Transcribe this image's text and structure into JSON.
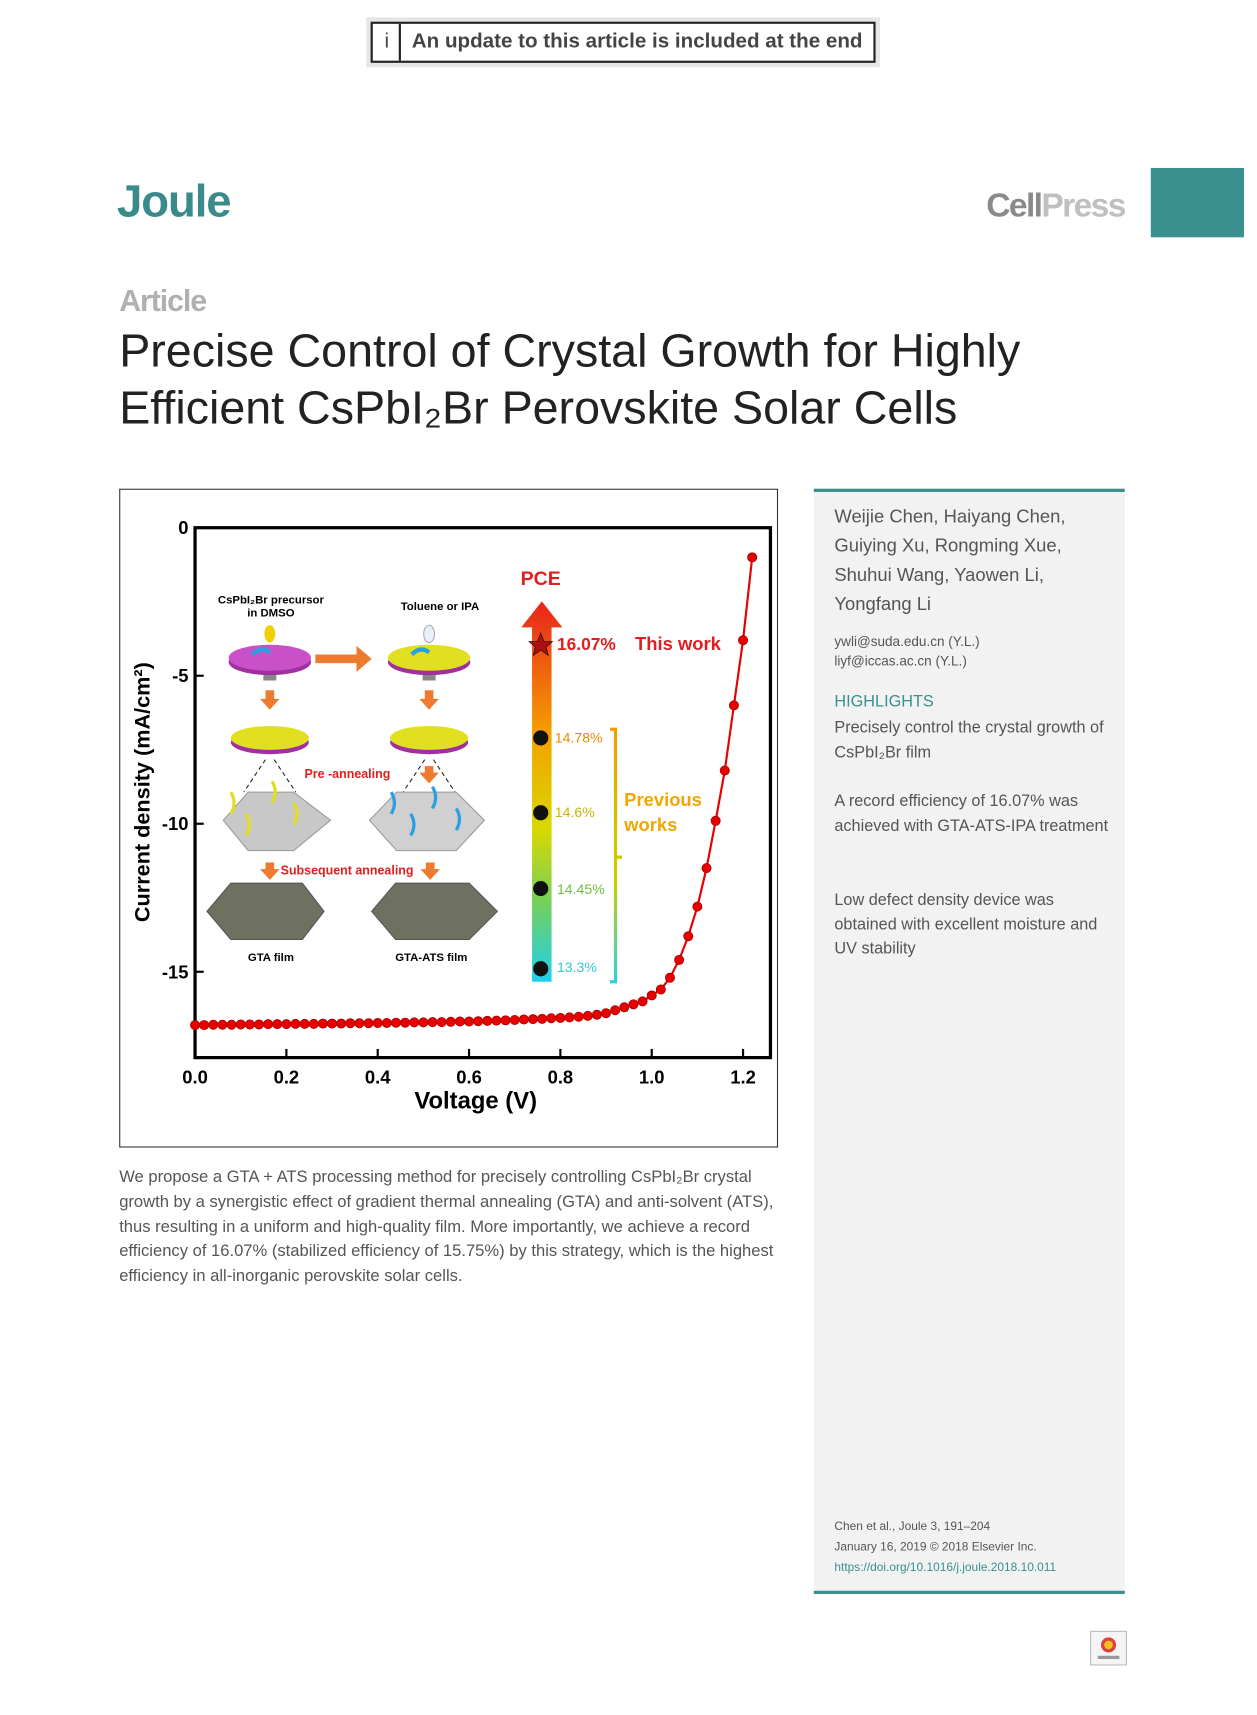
{
  "banner": {
    "icon": "i",
    "text": "An update to this article is included at the end"
  },
  "journal": "Joule",
  "publisher": {
    "first": "Cell",
    "second": "Press"
  },
  "article_type": "Article",
  "title": [
    "Precise Control of Crystal Growth for Highly",
    "Efficient CsPbI₂Br Perovskite Solar Cells"
  ],
  "figure": {
    "chart_data": {
      "type": "line",
      "xlabel": "Voltage (V)",
      "ylabel": "Current density (mA/cm²)",
      "x": [
        0,
        0.02,
        0.04,
        0.06,
        0.08,
        0.1,
        0.12,
        0.14,
        0.16,
        0.18,
        0.2,
        0.22,
        0.24,
        0.26,
        0.28,
        0.3,
        0.32,
        0.34,
        0.36,
        0.38,
        0.4,
        0.42,
        0.44,
        0.46,
        0.48,
        0.5,
        0.52,
        0.54,
        0.56,
        0.58,
        0.6,
        0.62,
        0.64,
        0.66,
        0.68,
        0.7,
        0.72,
        0.74,
        0.76,
        0.78,
        0.8,
        0.82,
        0.84,
        0.86,
        0.88,
        0.9,
        0.92,
        0.94,
        0.96,
        0.98,
        1.0,
        1.02,
        1.04,
        1.06,
        1.08,
        1.1,
        1.12,
        1.14,
        1.16,
        1.18,
        1.2,
        1.22
      ],
      "series": [
        {
          "color": "#e60000",
          "values": [
            -16.8,
            -16.8,
            -16.79,
            -16.79,
            -16.79,
            -16.78,
            -16.78,
            -16.78,
            -16.77,
            -16.77,
            -16.77,
            -16.76,
            -16.76,
            -16.76,
            -16.75,
            -16.75,
            -16.75,
            -16.74,
            -16.74,
            -16.74,
            -16.73,
            -16.73,
            -16.72,
            -16.72,
            -16.71,
            -16.71,
            -16.7,
            -16.7,
            -16.69,
            -16.68,
            -16.68,
            -16.67,
            -16.66,
            -16.65,
            -16.64,
            -16.63,
            -16.61,
            -16.6,
            -16.59,
            -16.57,
            -16.56,
            -16.54,
            -16.52,
            -16.49,
            -16.45,
            -16.4,
            -16.3,
            -16.2,
            -16.1,
            -16.0,
            -15.8,
            -15.6,
            -15.2,
            -14.6,
            -13.8,
            -12.8,
            -11.5,
            -9.9,
            -8.2,
            -6.0,
            -3.8,
            -1.0
          ]
        }
      ],
      "xlim": [
        0,
        1.26
      ],
      "ylim": [
        -17.9,
        0
      ],
      "xticks": [
        {
          "value": 0,
          "label": "0.0"
        },
        0.2,
        0.4,
        0.6,
        0.8,
        {
          "value": 1,
          "label": "1.0"
        },
        1.2
      ],
      "yticks": [
        0,
        -5,
        -10,
        -15
      ]
    },
    "inset": {
      "precursor": [
        "CsPbI₂Br precursor",
        "in DMSO"
      ],
      "antisolvent": "Toluene or IPA",
      "pre_annealing": "Pre -annealing",
      "subsequent_annealing": "Subsequent annealing",
      "films": [
        "GTA film",
        "GTA-ATS film"
      ],
      "pce_label": "PCE",
      "this_work": {
        "pce": "16.07%",
        "label": "This work"
      },
      "previous_works": {
        "pces": [
          "14.78%",
          "14.6%",
          "14.45%",
          "13.3%"
        ],
        "label": [
          "Previous",
          "works"
        ]
      }
    }
  },
  "abstract": "We propose a GTA + ATS processing method for precisely controlling CsPbI₂Br crystal growth by a synergistic effect of gradient thermal annealing (GTA) and anti-solvent (ATS), thus resulting in a uniform and high-quality film. More importantly, we achieve a record efficiency of 16.07% (stabilized efficiency of 15.75%) by this strategy, which is the highest efficiency in all-inorganic perovskite solar cells.",
  "sidebar": {
    "authors": [
      "Weijie Chen, Haiyang Chen,",
      "Guiying Xu, Rongming Xue,",
      "Shuhui Wang, Yaowen Li,",
      "Yongfang Li"
    ],
    "emails": [
      "ywli@suda.edu.cn (Y.L.)",
      "liyf@iccas.ac.cn (Y.L.)"
    ],
    "highlights_heading": "HIGHLIGHTS",
    "highlights": [
      "Precisely control the crystal growth of CsPbI₂Br film",
      "A record efficiency of 16.07% was achieved with GTA-ATS-IPA treatment",
      "Low defect density device was obtained with excellent moisture and UV stability"
    ],
    "citation": [
      "Chen et al., Joule 3, 191–204",
      "January 16, 2019 © 2018 Elsevier Inc.",
      "https://doi.org/10.1016/j.joule.2018.10.011"
    ]
  }
}
